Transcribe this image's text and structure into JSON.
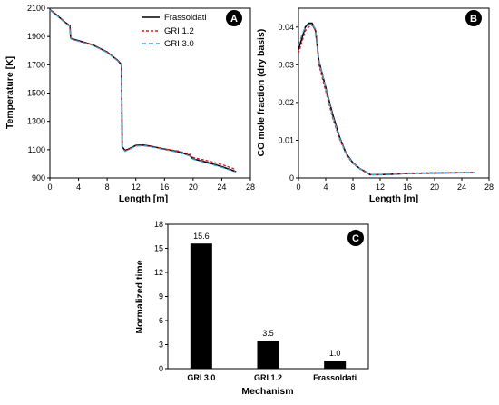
{
  "chart_data": [
    {
      "type": "line",
      "badge": "A",
      "xlabel": "Length [m]",
      "ylabel": "Temperature [K]",
      "xlim": [
        0,
        28
      ],
      "ylim": [
        900,
        2100
      ],
      "xticks": [
        0,
        4,
        8,
        12,
        16,
        20,
        24,
        28
      ],
      "yticks": [
        900,
        1100,
        1300,
        1500,
        1700,
        1900,
        2100
      ],
      "grid": false,
      "legend": "top-right",
      "series": [
        {
          "name": "Frassoldati",
          "color": "#000000",
          "dash": "solid",
          "x": [
            0,
            1,
            2,
            2.8,
            2.9,
            3.0,
            4,
            6,
            8,
            9.5,
            10.0,
            10.1,
            10.5,
            11,
            12,
            13,
            14,
            16,
            18,
            19.5,
            20,
            22,
            24,
            26
          ],
          "y": [
            2090,
            2050,
            2005,
            1975,
            1890,
            1885,
            1870,
            1840,
            1790,
            1730,
            1700,
            1120,
            1095,
            1105,
            1130,
            1132,
            1125,
            1105,
            1085,
            1060,
            1035,
            1010,
            980,
            945
          ]
        },
        {
          "name": "GRI 1.2",
          "color": "#e8141b",
          "dash": "dashed",
          "x": [
            0,
            1,
            2,
            2.8,
            2.9,
            3.0,
            4,
            6,
            8,
            9.5,
            10.0,
            10.1,
            10.5,
            11,
            12,
            13,
            14,
            16,
            18,
            19.5,
            20,
            22,
            24,
            26
          ],
          "y": [
            2088,
            2048,
            2003,
            1972,
            1888,
            1883,
            1868,
            1838,
            1788,
            1728,
            1698,
            1115,
            1090,
            1102,
            1127,
            1130,
            1124,
            1106,
            1090,
            1068,
            1045,
            1022,
            995,
            960
          ]
        },
        {
          "name": "GRI 3.0",
          "color": "#3da5d9",
          "dash": "dashed",
          "x": [
            0,
            1,
            2,
            2.8,
            2.9,
            3.0,
            4,
            6,
            8,
            9.5,
            10.0,
            10.1,
            10.5,
            11,
            12,
            13,
            14,
            16,
            18,
            19.5,
            20,
            22,
            24,
            26
          ],
          "y": [
            2086,
            2046,
            2001,
            1970,
            1886,
            1881,
            1866,
            1836,
            1786,
            1726,
            1696,
            1112,
            1088,
            1100,
            1125,
            1128,
            1121,
            1100,
            1080,
            1056,
            1032,
            1005,
            975,
            942
          ]
        }
      ]
    },
    {
      "type": "line",
      "badge": "B",
      "xlabel": "Length [m]",
      "ylabel": "CO mole fraction (dry basis)",
      "xlim": [
        0,
        28
      ],
      "ylim": [
        0,
        0.045
      ],
      "xticks": [
        0,
        4,
        8,
        12,
        16,
        20,
        24,
        28
      ],
      "yticks": [
        0,
        0.01,
        0.02,
        0.03,
        0.04
      ],
      "grid": false,
      "series": [
        {
          "name": "Frassoldati",
          "color": "#000000",
          "dash": "solid",
          "x": [
            0,
            0.5,
            1,
            1.5,
            2,
            2.5,
            3,
            4,
            5,
            6,
            7,
            8,
            9,
            10,
            10.5,
            12,
            14,
            16,
            20,
            24,
            26
          ],
          "y": [
            0.034,
            0.037,
            0.04,
            0.041,
            0.041,
            0.039,
            0.031,
            0.024,
            0.017,
            0.011,
            0.0065,
            0.004,
            0.0025,
            0.0015,
            0.0009,
            0.0009,
            0.001,
            0.0012,
            0.0013,
            0.0014,
            0.0014
          ]
        },
        {
          "name": "GRI 1.2",
          "color": "#e8141b",
          "dash": "dashed",
          "x": [
            0,
            0.5,
            1,
            1.5,
            2,
            2.5,
            3,
            4,
            5,
            6,
            7,
            8,
            9,
            10,
            10.5,
            12,
            14,
            16,
            20,
            24,
            26
          ],
          "y": [
            0.033,
            0.036,
            0.039,
            0.04,
            0.0405,
            0.039,
            0.03,
            0.023,
            0.016,
            0.0105,
            0.0062,
            0.0038,
            0.0024,
            0.0014,
            0.0009,
            0.0009,
            0.0011,
            0.0013,
            0.0014,
            0.0014,
            0.0015
          ]
        },
        {
          "name": "GRI 3.0",
          "color": "#3da5d9",
          "dash": "dashed",
          "x": [
            0,
            0.5,
            1,
            1.5,
            2,
            2.5,
            3,
            4,
            5,
            6,
            7,
            8,
            9,
            10,
            10.5,
            12,
            14,
            16,
            20,
            24,
            26
          ],
          "y": [
            0.035,
            0.038,
            0.04,
            0.0405,
            0.0408,
            0.0395,
            0.031,
            0.024,
            0.0165,
            0.0108,
            0.0064,
            0.0039,
            0.0025,
            0.0015,
            0.0009,
            0.0009,
            0.001,
            0.0012,
            0.0013,
            0.0014,
            0.0014
          ]
        }
      ]
    },
    {
      "type": "bar",
      "badge": "C",
      "xlabel": "Mechanism",
      "ylabel": "Normalized time",
      "ylim": [
        0,
        18
      ],
      "yticks": [
        0,
        3,
        6,
        9,
        12,
        15,
        18
      ],
      "grid": false,
      "categories": [
        "GRI 3.0",
        "GRI 1.2",
        "Frassoldati"
      ],
      "values": [
        15.6,
        3.5,
        1.0
      ],
      "labels": [
        "15.6",
        "3.5",
        "1.0"
      ],
      "color": "#000000"
    }
  ]
}
